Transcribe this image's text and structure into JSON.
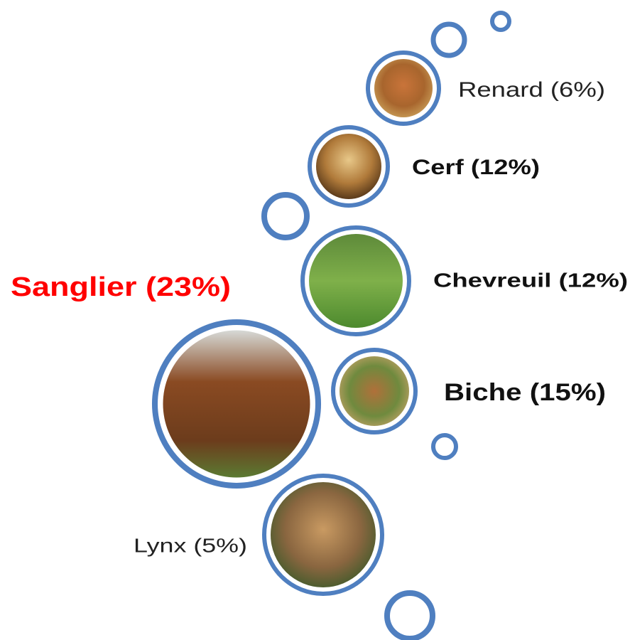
{
  "nodes": [
    {
      "label": "Renard (6%)"
    },
    {
      "label": "Cerf (12%)"
    },
    {
      "label": "Chevreuil (12%)"
    },
    {
      "label": "Sanglier (23%)"
    },
    {
      "label": "Biche (15%)"
    },
    {
      "label": "Lynx (5%)"
    }
  ]
}
